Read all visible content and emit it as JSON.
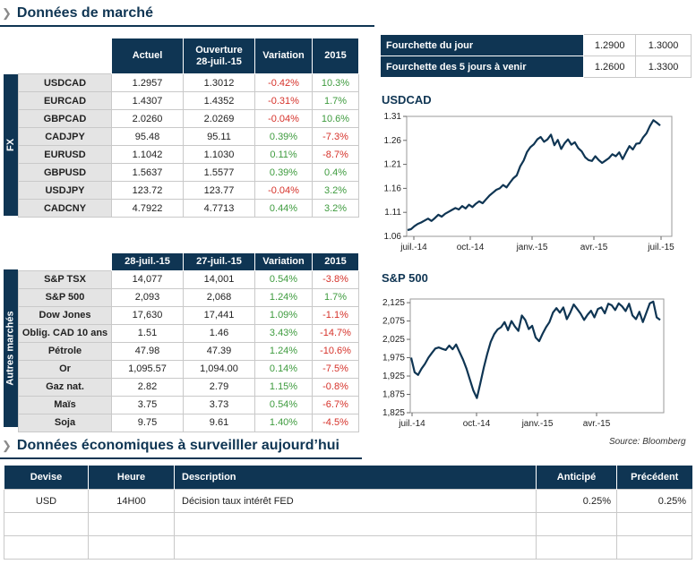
{
  "market": {
    "title": "Données de marché",
    "fx": {
      "side_label": "FX",
      "headers": [
        "Actuel",
        "Ouverture\n28-juil.-15",
        "Variation",
        "2015"
      ],
      "rows": [
        {
          "name": "USDCAD",
          "current": "1.2957",
          "open": "1.3012",
          "variation": "-0.42%",
          "ytd": "10.3%"
        },
        {
          "name": "EURCAD",
          "current": "1.4307",
          "open": "1.4352",
          "variation": "-0.31%",
          "ytd": "1.7%"
        },
        {
          "name": "GBPCAD",
          "current": "2.0260",
          "open": "2.0269",
          "variation": "-0.04%",
          "ytd": "10.6%"
        },
        {
          "name": "CADJPY",
          "current": "95.48",
          "open": "95.11",
          "variation": "0.39%",
          "ytd": "-7.3%"
        },
        {
          "name": "EURUSD",
          "current": "1.1042",
          "open": "1.1030",
          "variation": "0.11%",
          "ytd": "-8.7%"
        },
        {
          "name": "GBPUSD",
          "current": "1.5637",
          "open": "1.5577",
          "variation": "0.39%",
          "ytd": "0.4%"
        },
        {
          "name": "USDJPY",
          "current": "123.72",
          "open": "123.77",
          "variation": "-0.04%",
          "ytd": "3.2%"
        },
        {
          "name": "CADCNY",
          "current": "4.7922",
          "open": "4.7713",
          "variation": "0.44%",
          "ytd": "3.2%"
        }
      ]
    },
    "other": {
      "side_label": "Autres marchés",
      "headers": [
        "28-juil.-15",
        "27-juil.-15",
        "Variation",
        "2015"
      ],
      "rows": [
        {
          "name": "S&P TSX",
          "current": "14,077",
          "prev": "14,001",
          "variation": "0.54%",
          "ytd": "-3.8%"
        },
        {
          "name": "S&P 500",
          "current": "2,093",
          "prev": "2,068",
          "variation": "1.24%",
          "ytd": "1.7%"
        },
        {
          "name": "Dow Jones",
          "current": "17,630",
          "prev": "17,441",
          "variation": "1.09%",
          "ytd": "-1.1%"
        },
        {
          "name": "Oblig. CAD 10 ans",
          "current": "1.51",
          "prev": "1.46",
          "variation": "3.43%",
          "ytd": "-14.7%"
        },
        {
          "name": "Pétrole",
          "current": "47.98",
          "prev": "47.39",
          "variation": "1.24%",
          "ytd": "-10.6%"
        },
        {
          "name": "Or",
          "current": "1,095.57",
          "prev": "1,094.00",
          "variation": "0.14%",
          "ytd": "-7.5%"
        },
        {
          "name": "Gaz nat.",
          "current": "2.82",
          "prev": "2.79",
          "variation": "1.15%",
          "ytd": "-0.8%"
        },
        {
          "name": "Maïs",
          "current": "3.75",
          "prev": "3.73",
          "variation": "0.54%",
          "ytd": "-6.7%"
        },
        {
          "name": "Soja",
          "current": "9.75",
          "prev": "9.61",
          "variation": "1.40%",
          "ytd": "-4.5%"
        }
      ]
    },
    "ranges": [
      {
        "label": "Fourchette du jour",
        "low": "1.2900",
        "high": "1.3000"
      },
      {
        "label": "Fourchette des 5 jours à venir",
        "low": "1.2600",
        "high": "1.3300"
      }
    ],
    "colors": {
      "navy": "#0f3553",
      "negative": "#d6322a",
      "positive": "#3e9b3e"
    }
  },
  "chart_data": [
    {
      "type": "line",
      "title": "USDCAD",
      "xlabel": "",
      "ylabel": "",
      "x_ticks": [
        "juil.-14",
        "oct.-14",
        "janv.-15",
        "avr.-15",
        "juil.-15"
      ],
      "y_ticks": [
        "1.06",
        "1.11",
        "1.16",
        "1.21",
        "1.26",
        "1.31"
      ],
      "ylim": [
        1.06,
        1.31
      ],
      "grid": false,
      "series": [
        {
          "values": [
            1.073,
            1.075,
            1.081,
            1.086,
            1.089,
            1.093,
            1.097,
            1.092,
            1.098,
            1.105,
            1.101,
            1.107,
            1.111,
            1.115,
            1.119,
            1.116,
            1.123,
            1.118,
            1.126,
            1.121,
            1.128,
            1.133,
            1.129,
            1.137,
            1.145,
            1.151,
            1.157,
            1.16,
            1.167,
            1.162,
            1.172,
            1.181,
            1.187,
            1.206,
            1.218,
            1.236,
            1.246,
            1.252,
            1.262,
            1.267,
            1.257,
            1.262,
            1.272,
            1.25,
            1.261,
            1.242,
            1.254,
            1.262,
            1.251,
            1.256,
            1.244,
            1.237,
            1.225,
            1.219,
            1.217,
            1.227,
            1.219,
            1.213,
            1.218,
            1.223,
            1.231,
            1.227,
            1.235,
            1.221,
            1.235,
            1.248,
            1.241,
            1.253,
            1.254,
            1.266,
            1.275,
            1.29,
            1.302,
            1.297,
            1.291
          ]
        }
      ]
    },
    {
      "type": "line",
      "title": "S&P 500",
      "xlabel": "",
      "ylabel": "",
      "x_ticks": [
        "juil.-14",
        "oct.-14",
        "janv.-15",
        "avr.-15"
      ],
      "y_ticks": [
        "1,825",
        "1,875",
        "1,925",
        "1,975",
        "2,025",
        "2,075",
        "2,125"
      ],
      "ylim": [
        1825,
        2135
      ],
      "grid": false,
      "series": [
        {
          "values": [
            1975,
            1935,
            1928,
            1945,
            1958,
            1975,
            1988,
            2000,
            2003,
            1999,
            1996,
            2008,
            1998,
            2011,
            1990,
            1970,
            1945,
            1915,
            1885,
            1865,
            1905,
            1948,
            1985,
            2018,
            2039,
            2052,
            2058,
            2072,
            2050,
            2075,
            2060,
            2048,
            2090,
            2078,
            2053,
            2062,
            2030,
            2020,
            2040,
            2058,
            2072,
            2098,
            2110,
            2098,
            2112,
            2080,
            2098,
            2120,
            2108,
            2095,
            2078,
            2092,
            2103,
            2085,
            2108,
            2112,
            2096,
            2122,
            2118,
            2105,
            2123,
            2115,
            2102,
            2122,
            2090,
            2080,
            2100,
            2072,
            2098,
            2123,
            2128,
            2085,
            2078
          ]
        }
      ]
    }
  ],
  "source": "Source: Bloomberg",
  "economic": {
    "title": "Données économiques à surveilller aujourd’hui",
    "headers": [
      "Devise",
      "Heure",
      "Description",
      "Anticipé",
      "Précédent"
    ],
    "rows": [
      {
        "currency": "USD",
        "time": "14H00",
        "description": "Décision taux intérêt FED",
        "expected": "0.25%",
        "previous": "0.25%"
      },
      {
        "currency": "",
        "time": "",
        "description": "",
        "expected": "",
        "previous": ""
      },
      {
        "currency": "",
        "time": "",
        "description": "",
        "expected": "",
        "previous": ""
      }
    ]
  }
}
